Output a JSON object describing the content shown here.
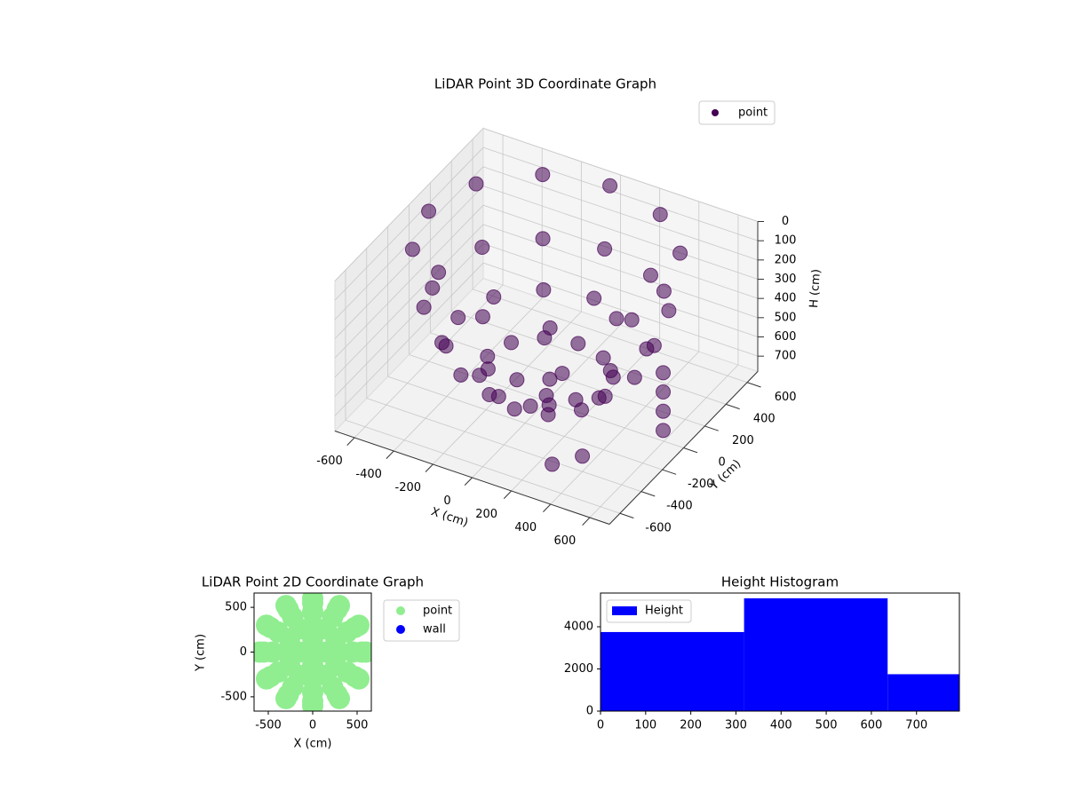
{
  "chart_data": [
    {
      "type": "scatter3d",
      "title": "LiDAR Point 3D Coordinate Graph",
      "xlabel": "X (cm)",
      "ylabel": "Y (cm)",
      "zlabel": "H (cm)",
      "xlim": [
        -700,
        700
      ],
      "ylim": [
        -700,
        700
      ],
      "zlim": [
        780,
        0
      ],
      "xticks": [
        -600,
        -400,
        -200,
        0,
        200,
        400,
        600
      ],
      "yticks": [
        -600,
        -400,
        -200,
        0,
        200,
        400,
        600
      ],
      "zticks": [
        0,
        100,
        200,
        300,
        400,
        500,
        600,
        700
      ],
      "grid": true,
      "legend": "upper right",
      "series": [
        {
          "name": "point",
          "color": "#440154",
          "x": [
            600,
            520,
            300,
            0,
            -300,
            -520,
            -600,
            -520,
            -300,
            0,
            300,
            520,
            550,
            476,
            275,
            0,
            -275,
            -476,
            -550,
            -476,
            -275,
            0,
            275,
            476,
            450,
            390,
            225,
            0,
            -225,
            -390,
            -450,
            -390,
            -225,
            0,
            225,
            390,
            300,
            260,
            150,
            0,
            -150,
            -260,
            -300,
            -260,
            -150,
            0,
            150,
            260,
            150,
            0,
            -150,
            0,
            0,
            650,
            650,
            650,
            650,
            400,
            300
          ],
          "y": [
            0,
            300,
            520,
            600,
            520,
            300,
            0,
            -300,
            -520,
            -600,
            -520,
            -300,
            0,
            275,
            476,
            550,
            476,
            275,
            0,
            -275,
            -476,
            -550,
            -476,
            -275,
            0,
            225,
            390,
            450,
            390,
            225,
            0,
            -225,
            -390,
            -450,
            -390,
            -225,
            0,
            150,
            260,
            300,
            260,
            150,
            0,
            -150,
            -260,
            -300,
            -260,
            -150,
            0,
            150,
            0,
            -150,
            0,
            -100,
            -100,
            -100,
            -100,
            -400,
            -500
          ],
          "z": [
            0,
            0,
            0,
            0,
            0,
            0,
            0,
            0,
            0,
            0,
            0,
            0,
            300,
            300,
            300,
            300,
            300,
            300,
            300,
            300,
            300,
            300,
            300,
            300,
            500,
            500,
            500,
            500,
            500,
            500,
            500,
            500,
            500,
            500,
            500,
            500,
            650,
            650,
            650,
            650,
            650,
            650,
            650,
            650,
            650,
            650,
            650,
            650,
            720,
            720,
            720,
            720,
            750,
            350,
            450,
            550,
            650,
            700,
            720
          ]
        }
      ]
    },
    {
      "type": "scatter",
      "title": "LiDAR Point 2D Coordinate Graph",
      "xlabel": "X (cm)",
      "ylabel": "Y (cm)",
      "xlim": [
        -660,
        660
      ],
      "ylim": [
        -660,
        660
      ],
      "xticks": [
        -500,
        0,
        500
      ],
      "yticks": [
        -500,
        0,
        500
      ],
      "legend": "outside right",
      "series": [
        {
          "name": "point",
          "color": "#90ee90",
          "x": [
            600,
            520,
            300,
            0,
            -300,
            -520,
            -600,
            -520,
            -300,
            0,
            300,
            520,
            550,
            476,
            275,
            0,
            -275,
            -476,
            -550,
            -476,
            -275,
            0,
            275,
            476,
            450,
            390,
            225,
            0,
            -225,
            -390,
            -450,
            -390,
            -225,
            0,
            225,
            390,
            300,
            260,
            150,
            0,
            -150,
            -260,
            -300,
            -260,
            -150,
            0,
            150,
            260,
            150,
            0,
            -150,
            0,
            0
          ],
          "y": [
            0,
            300,
            520,
            600,
            520,
            300,
            0,
            -300,
            -520,
            -600,
            -520,
            -300,
            0,
            275,
            476,
            550,
            476,
            275,
            0,
            -275,
            -476,
            -550,
            -476,
            -275,
            0,
            225,
            390,
            450,
            390,
            225,
            0,
            -225,
            -390,
            -450,
            -390,
            -225,
            0,
            150,
            260,
            300,
            260,
            150,
            0,
            -150,
            -260,
            -300,
            -260,
            -150,
            0,
            150,
            0,
            -150,
            0
          ]
        },
        {
          "name": "wall",
          "color": "#0000ff",
          "x": [],
          "y": []
        }
      ]
    },
    {
      "type": "histogram",
      "title": "Height Histogram",
      "name": "Height",
      "color": "#0000ff",
      "bins": [
        0,
        318,
        636,
        795
      ],
      "counts": [
        3750,
        5350,
        1750
      ],
      "xlim": [
        0,
        795
      ],
      "ylim": [
        0,
        5600
      ],
      "xticks": [
        0,
        100,
        200,
        300,
        400,
        500,
        600,
        700
      ],
      "yticks": [
        0,
        2000,
        4000
      ],
      "legend": "upper left"
    }
  ]
}
